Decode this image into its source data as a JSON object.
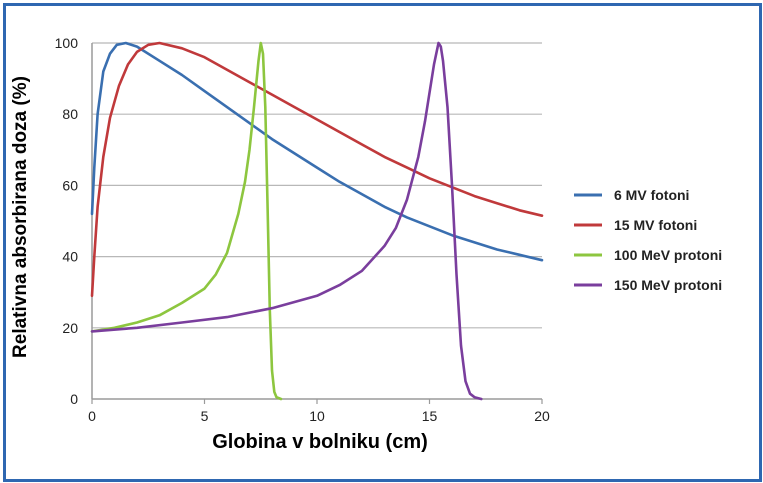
{
  "chart_data": {
    "type": "line",
    "xlabel": "Globina v bolniku (cm)",
    "ylabel": "Relativna absorbirana doza (%)",
    "xlim": [
      0,
      20
    ],
    "ylim": [
      0,
      100
    ],
    "xticks": [
      "0",
      "5",
      "10",
      "15",
      "20"
    ],
    "yticks": [
      "0",
      "20",
      "40",
      "60",
      "80",
      "100"
    ],
    "grid": "horizontal",
    "legend_position": "right",
    "series": [
      {
        "name": "6 MV fotoni",
        "color": "#3a6fb0",
        "x": [
          0,
          0.1,
          0.25,
          0.5,
          0.8,
          1.1,
          1.5,
          2,
          3,
          4,
          5,
          6,
          7,
          8,
          9,
          10,
          11,
          12,
          13,
          14,
          15,
          16,
          17,
          18,
          19,
          20
        ],
        "y": [
          52,
          65,
          80,
          92,
          97,
          99.5,
          100,
          99,
          95,
          91,
          86.5,
          82,
          77.5,
          73,
          69,
          65,
          61,
          57.5,
          54,
          51,
          48.5,
          46,
          44,
          42,
          40.5,
          39
        ]
      },
      {
        "name": "15 MV fotoni",
        "color": "#c0393b",
        "x": [
          0,
          0.1,
          0.25,
          0.5,
          0.8,
          1.2,
          1.6,
          2,
          2.5,
          3,
          4,
          5,
          6,
          7,
          8,
          9,
          10,
          11,
          12,
          13,
          14,
          15,
          16,
          17,
          18,
          19,
          20
        ],
        "y": [
          29,
          40,
          54,
          68,
          79,
          88,
          94,
          97.5,
          99.5,
          100,
          98.5,
          96,
          92.5,
          89,
          85.5,
          82,
          78.5,
          75,
          71.5,
          68,
          65,
          62,
          59.5,
          57,
          55,
          53,
          51.5
        ]
      },
      {
        "name": "100 MeV protoni",
        "color": "#8dc63f",
        "x": [
          0,
          1,
          2,
          3,
          4,
          5,
          5.5,
          6,
          6.5,
          6.8,
          7,
          7.2,
          7.4,
          7.5,
          7.6,
          7.7,
          7.8,
          7.9,
          8.0,
          8.1,
          8.2,
          8.4
        ],
        "y": [
          19,
          20,
          21.5,
          23.5,
          27,
          31,
          35,
          41,
          52,
          61,
          70,
          82,
          95,
          100,
          97,
          82,
          55,
          25,
          8,
          2,
          0.5,
          0
        ]
      },
      {
        "name": "150 MeV protoni",
        "color": "#7a3e9d",
        "x": [
          0,
          2,
          4,
          6,
          8,
          10,
          11,
          12,
          13,
          13.5,
          14,
          14.5,
          14.8,
          15,
          15.2,
          15.4,
          15.5,
          15.6,
          15.8,
          16,
          16.2,
          16.4,
          16.6,
          16.8,
          17.0,
          17.3
        ],
        "y": [
          19,
          20,
          21.5,
          23,
          25.5,
          29,
          32,
          36,
          43,
          48,
          56,
          68,
          78,
          86,
          94,
          100,
          99,
          95,
          82,
          60,
          35,
          15,
          5,
          1.5,
          0.5,
          0
        ]
      }
    ]
  }
}
